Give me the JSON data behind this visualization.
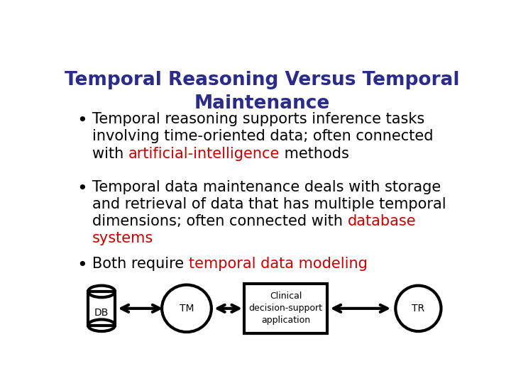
{
  "title_line1": "Temporal Reasoning Versus Temporal",
  "title_line2": "Maintenance",
  "title_color": "#2B2B8B",
  "title_fontsize": 19,
  "bg_color": "#FFFFFF",
  "black": "#000000",
  "red_color": "#CC0000",
  "bullet_fontsize": 15,
  "diagram_fontsize": 10,
  "bullet1_lines": [
    [
      {
        "text": "Temporal reasoning supports inference tasks",
        "color": "#000000"
      }
    ],
    [
      {
        "text": "involving time-oriented data; often connected",
        "color": "#000000"
      }
    ],
    [
      {
        "text": "with ",
        "color": "#000000"
      },
      {
        "text": "artificial-intelligence",
        "color": "#CC0000"
      },
      {
        "text": " methods",
        "color": "#000000"
      }
    ]
  ],
  "bullet2_lines": [
    [
      {
        "text": "Temporal data maintenance deals with storage",
        "color": "#000000"
      }
    ],
    [
      {
        "text": "and retrieval of data that has multiple temporal",
        "color": "#000000"
      }
    ],
    [
      {
        "text": "dimensions; often connected with ",
        "color": "#000000"
      },
      {
        "text": "database",
        "color": "#CC0000"
      }
    ],
    [
      {
        "text": "systems",
        "color": "#CC0000"
      }
    ]
  ],
  "bullet3_lines": [
    [
      {
        "text": "Both require ",
        "color": "#000000"
      },
      {
        "text": "temporal data modeling",
        "color": "#CC0000"
      }
    ]
  ],
  "diagram": {
    "db_label": "DB",
    "tm_label": "TM",
    "box_label": "Clinical\ndecision-support\napplication",
    "tr_label": "TR"
  }
}
